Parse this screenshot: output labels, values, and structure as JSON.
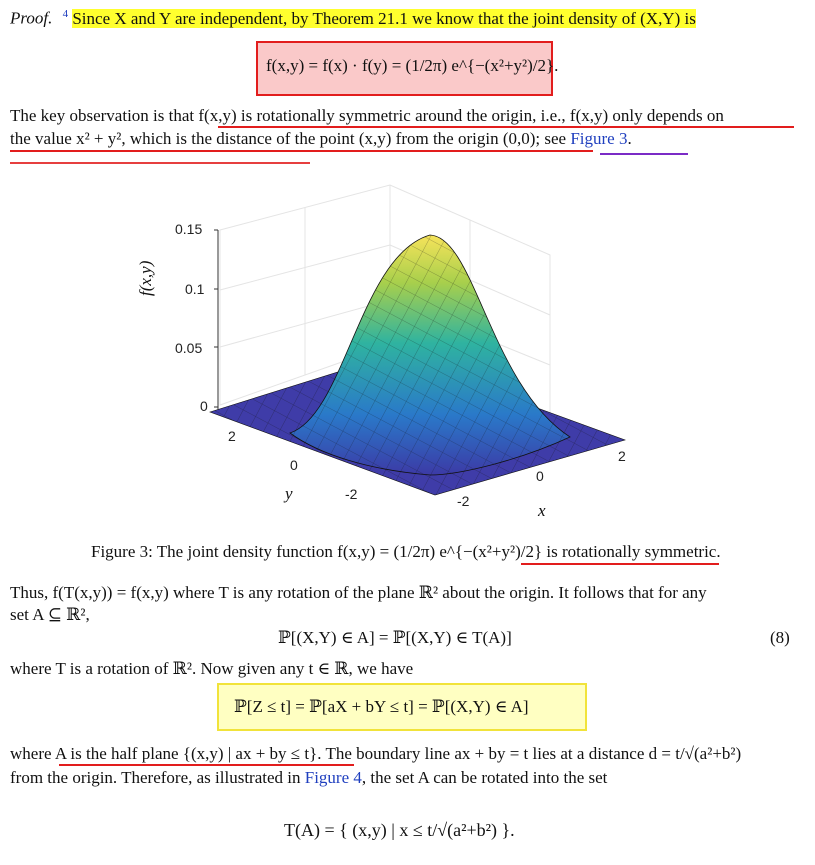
{
  "proof_label": "Proof.",
  "footnote_mark": "4",
  "line1": "Since X and Y are independent, by Theorem 21.1 we know that the joint density of (X,Y) is",
  "eq_density": "f(x,y) = f(x) · f(y) = (1/2π) e^{−(x²+y²)/2}.",
  "para_key_1": "The key observation is that f(x,y) is rotationally symmetric around the origin, i.e., f(x,y) only depends on",
  "para_key_2_pre": "the value x² + y², which is the distance of the point (x,y) from the origin (0,0); see ",
  "para_key_2_link": "Figure 3",
  "para_key_2_post": ".",
  "plot": {
    "z_ticks": [
      "0.15",
      "0.1",
      "0.05",
      "0"
    ],
    "z_label": "f(x,y)",
    "y_ticks": [
      "2",
      "0",
      "-2"
    ],
    "y_label": "y",
    "x_ticks": [
      "-2",
      "0",
      "2"
    ],
    "x_label": "x",
    "colors": {
      "low": "#3f3ba8",
      "mid": "#2fb3a0",
      "high": "#f6e35a"
    }
  },
  "caption_pre": "Figure 3: The joint density function f(x,y) = (1/2π) e^{−(x²+y²)/2} ",
  "caption_post": "is rotationally symmetric.",
  "para_thus_1": "Thus, f(T(x,y)) = f(x,y) where T is any rotation of the plane ℝ² about the origin. It follows that for any",
  "para_thus_2": "set A ⊆ ℝ²,",
  "eq8": "ℙ[(X,Y) ∈ A] = ℙ[(X,Y) ∈ T(A)]",
  "eq8_num": "(8)",
  "para_where": "where T is a rotation of ℝ². Now given any t ∈ ℝ, we have",
  "eq_prob": "ℙ[Z ≤ t]  =  ℙ[aX + bY ≤ t]  =  ℙ[(X,Y) ∈ A]",
  "para_half_1_pre": "where ",
  "para_half_1_ul": "A is the half plane {(x,y) | ax + by ≤ t}",
  "para_half_1_post": ". The boundary line ax + by = t lies at a distance d = t/√(a²+b²)",
  "para_half_2_pre": "from the origin. Therefore, as illustrated in ",
  "para_half_2_link": "Figure 4",
  "para_half_2_post": ", the set A can be rotated into the set",
  "eq_TA": "T(A) = { (x,y) | x ≤ t/√(a²+b²) }."
}
